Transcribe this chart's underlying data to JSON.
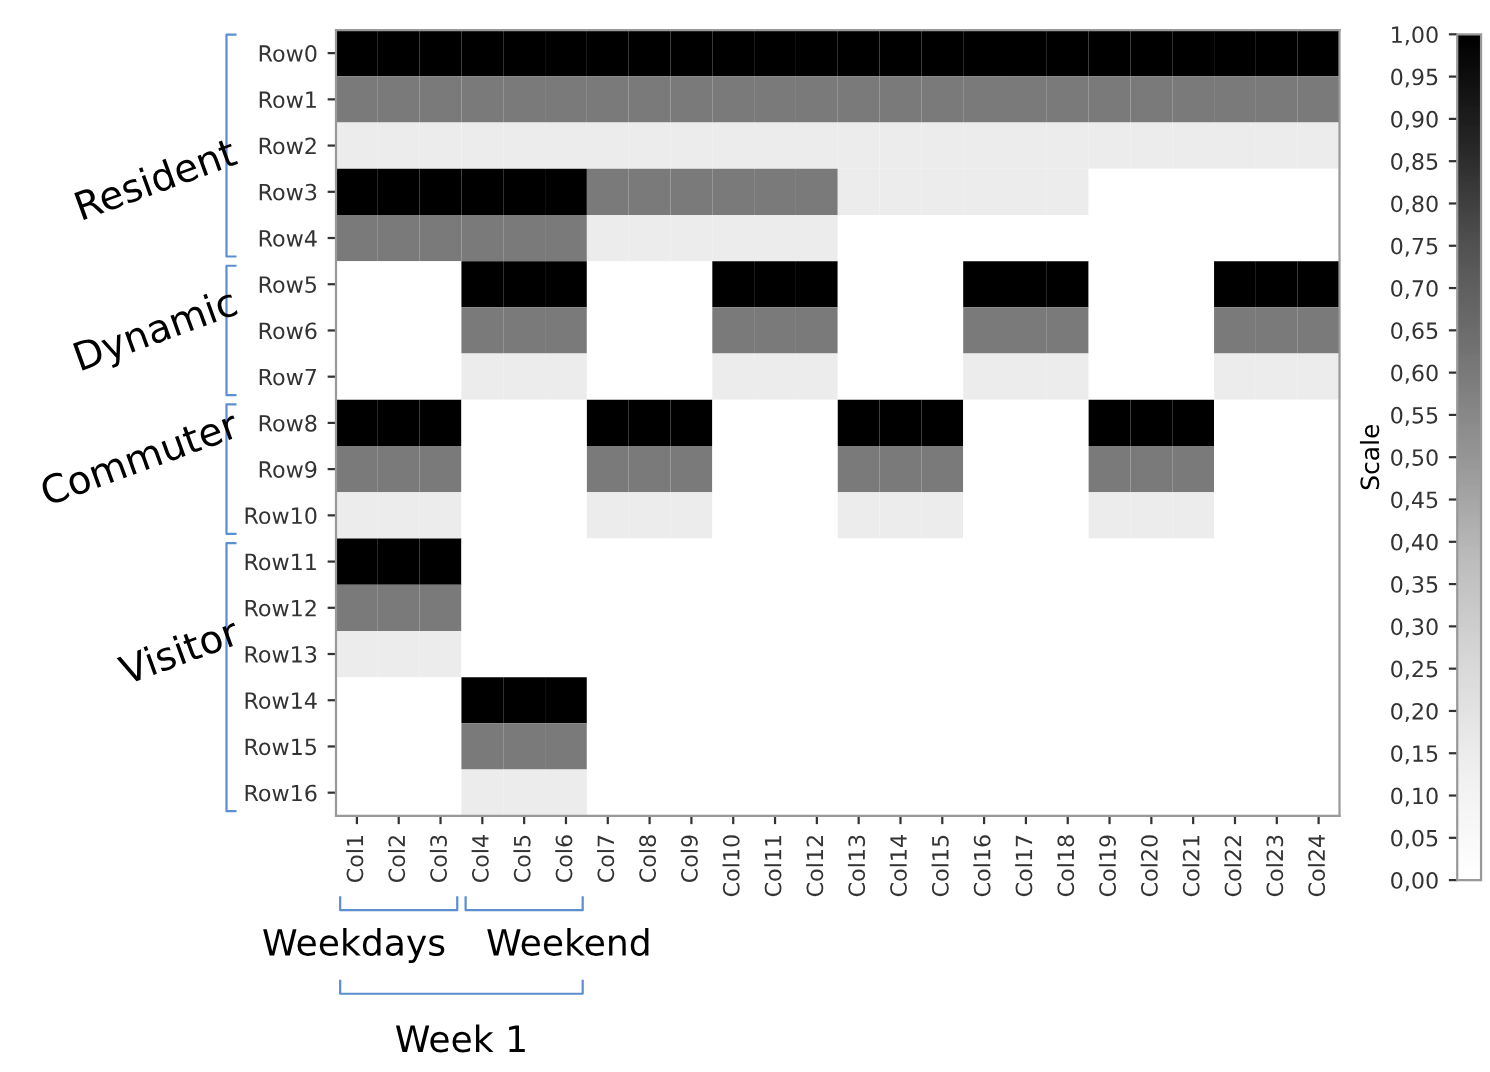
{
  "chart_data": {
    "type": "heatmap",
    "categories": [
      "Col1",
      "Col2",
      "Col3",
      "Col4",
      "Col5",
      "Col6",
      "Col7",
      "Col8",
      "Col9",
      "Col10",
      "Col11",
      "Col12",
      "Col13",
      "Col14",
      "Col15",
      "Col16",
      "Col17",
      "Col18",
      "Col19",
      "Col20",
      "Col21",
      "Col22",
      "Col23",
      "Col24"
    ],
    "y_categories": [
      "Row0",
      "Row1",
      "Row2",
      "Row3",
      "Row4",
      "Row5",
      "Row6",
      "Row7",
      "Row8",
      "Row9",
      "Row10",
      "Row11",
      "Row12",
      "Row13",
      "Row14",
      "Row15",
      "Row16"
    ],
    "cells": [
      [
        1,
        1,
        1,
        1,
        1,
        1,
        1,
        1,
        1,
        1,
        1,
        1,
        1,
        1,
        1,
        1,
        1,
        1,
        1,
        1,
        1,
        1,
        1,
        1
      ],
      [
        0.6,
        0.6,
        0.6,
        0.6,
        0.6,
        0.6,
        0.6,
        0.6,
        0.6,
        0.6,
        0.6,
        0.6,
        0.6,
        0.6,
        0.6,
        0.6,
        0.6,
        0.6,
        0.6,
        0.6,
        0.6,
        0.6,
        0.6,
        0.6
      ],
      [
        0.15,
        0.15,
        0.15,
        0.15,
        0.15,
        0.15,
        0.15,
        0.15,
        0.15,
        0.15,
        0.15,
        0.15,
        0.15,
        0.15,
        0.15,
        0.15,
        0.15,
        0.15,
        0.15,
        0.15,
        0.15,
        0.15,
        0.15,
        0.15
      ],
      [
        1,
        1,
        1,
        1,
        1,
        1,
        0.6,
        0.6,
        0.6,
        0.6,
        0.6,
        0.6,
        0.15,
        0.15,
        0.15,
        0.15,
        0.15,
        0.15,
        0,
        0,
        0,
        0,
        0,
        0
      ],
      [
        0.6,
        0.6,
        0.6,
        0.6,
        0.6,
        0.6,
        0.15,
        0.15,
        0.15,
        0.15,
        0.15,
        0.15,
        0,
        0,
        0,
        0,
        0,
        0,
        0,
        0,
        0,
        0,
        0,
        0
      ],
      [
        0,
        0,
        0,
        1,
        1,
        1,
        0,
        0,
        0,
        1,
        1,
        1,
        0,
        0,
        0,
        1,
        1,
        1,
        0,
        0,
        0,
        1,
        1,
        1
      ],
      [
        0,
        0,
        0,
        0.6,
        0.6,
        0.6,
        0,
        0,
        0,
        0.6,
        0.6,
        0.6,
        0,
        0,
        0,
        0.6,
        0.6,
        0.6,
        0,
        0,
        0,
        0.6,
        0.6,
        0.6
      ],
      [
        0,
        0,
        0,
        0.15,
        0.15,
        0.15,
        0,
        0,
        0,
        0.15,
        0.15,
        0.15,
        0,
        0,
        0,
        0.15,
        0.15,
        0.15,
        0,
        0,
        0,
        0.15,
        0.15,
        0.15
      ],
      [
        1,
        1,
        1,
        0,
        0,
        0,
        1,
        1,
        1,
        0,
        0,
        0,
        1,
        1,
        1,
        0,
        0,
        0,
        1,
        1,
        1,
        0,
        0,
        0
      ],
      [
        0.6,
        0.6,
        0.6,
        0,
        0,
        0,
        0.6,
        0.6,
        0.6,
        0,
        0,
        0,
        0.6,
        0.6,
        0.6,
        0,
        0,
        0,
        0.6,
        0.6,
        0.6,
        0,
        0,
        0
      ],
      [
        0.15,
        0.15,
        0.15,
        0,
        0,
        0,
        0.15,
        0.15,
        0.15,
        0,
        0,
        0,
        0.15,
        0.15,
        0.15,
        0,
        0,
        0,
        0.15,
        0.15,
        0.15,
        0,
        0,
        0
      ],
      [
        1,
        1,
        1,
        0,
        0,
        0,
        0,
        0,
        0,
        0,
        0,
        0,
        0,
        0,
        0,
        0,
        0,
        0,
        0,
        0,
        0,
        0,
        0,
        0
      ],
      [
        0.6,
        0.6,
        0.6,
        0,
        0,
        0,
        0,
        0,
        0,
        0,
        0,
        0,
        0,
        0,
        0,
        0,
        0,
        0,
        0,
        0,
        0,
        0,
        0,
        0
      ],
      [
        0.15,
        0.15,
        0.15,
        0,
        0,
        0,
        0,
        0,
        0,
        0,
        0,
        0,
        0,
        0,
        0,
        0,
        0,
        0,
        0,
        0,
        0,
        0,
        0,
        0
      ],
      [
        0,
        0,
        0,
        1,
        1,
        1,
        0,
        0,
        0,
        0,
        0,
        0,
        0,
        0,
        0,
        0,
        0,
        0,
        0,
        0,
        0,
        0,
        0,
        0
      ],
      [
        0,
        0,
        0,
        0.6,
        0.6,
        0.6,
        0,
        0,
        0,
        0,
        0,
        0,
        0,
        0,
        0,
        0,
        0,
        0,
        0,
        0,
        0,
        0,
        0,
        0
      ],
      [
        0,
        0,
        0,
        0.15,
        0.15,
        0.15,
        0,
        0,
        0,
        0,
        0,
        0,
        0,
        0,
        0,
        0,
        0,
        0,
        0,
        0,
        0,
        0,
        0,
        0
      ]
    ],
    "clabel": "Scale",
    "clim": [
      0,
      1
    ],
    "cticks": [
      {
        "value": 0,
        "label": "0,00"
      },
      {
        "value": 0.05,
        "label": "0,05"
      },
      {
        "value": 0.1,
        "label": "0,10"
      },
      {
        "value": 0.15,
        "label": "0,15"
      },
      {
        "value": 0.2,
        "label": "0,20"
      },
      {
        "value": 0.25,
        "label": "0,25"
      },
      {
        "value": 0.3,
        "label": "0,30"
      },
      {
        "value": 0.35,
        "label": "0,35"
      },
      {
        "value": 0.4,
        "label": "0,40"
      },
      {
        "value": 0.45,
        "label": "0,45"
      },
      {
        "value": 0.5,
        "label": "0,50"
      },
      {
        "value": 0.55,
        "label": "0,55"
      },
      {
        "value": 0.6,
        "label": "0,60"
      },
      {
        "value": 0.65,
        "label": "0,65"
      },
      {
        "value": 0.7,
        "label": "0,70"
      },
      {
        "value": 0.75,
        "label": "0,75"
      },
      {
        "value": 0.8,
        "label": "0,80"
      },
      {
        "value": 0.85,
        "label": "0,85"
      },
      {
        "value": 0.9,
        "label": "0,90"
      },
      {
        "value": 0.95,
        "label": "0,95"
      },
      {
        "value": 1,
        "label": "1,00"
      }
    ],
    "annotations": [
      "Resident",
      "Dynamic",
      "Commuter",
      "Visitor",
      "Weekdays",
      "Weekend",
      "Week 1"
    ]
  }
}
